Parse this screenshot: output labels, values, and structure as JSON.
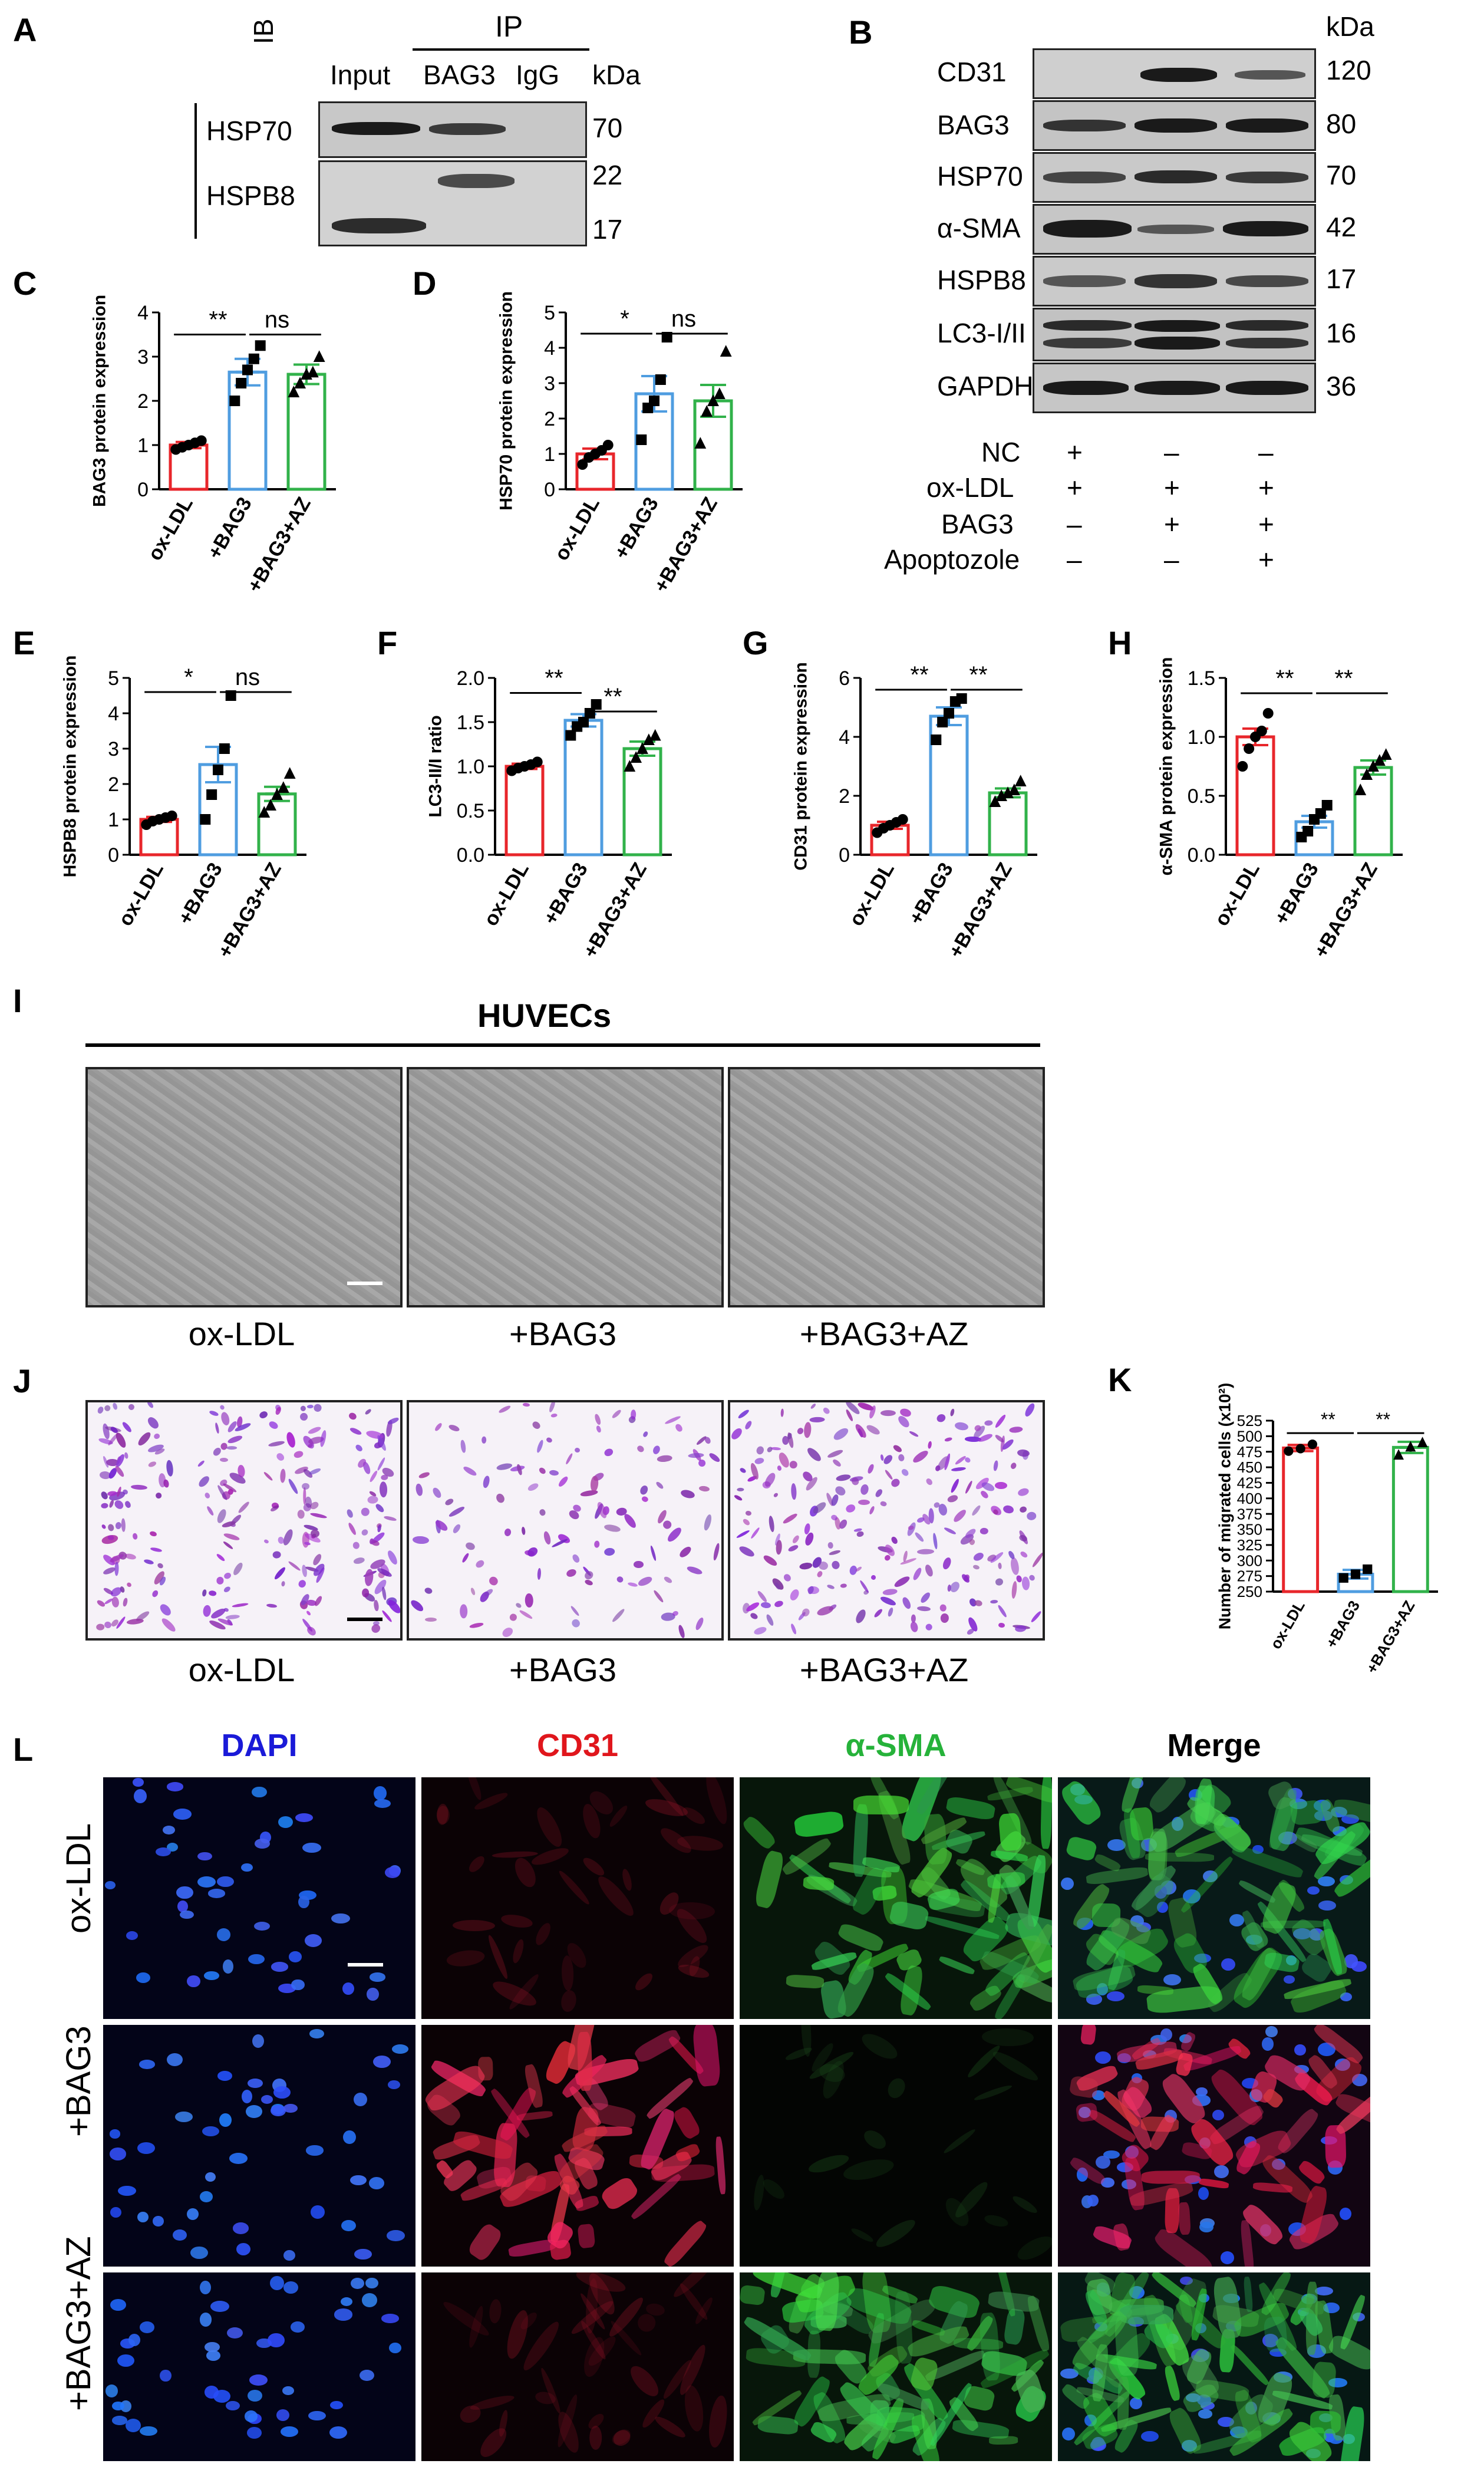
{
  "panels": {
    "A": {
      "letter": "A",
      "ib_label": "IB",
      "ip_label": "IP",
      "columns": [
        "Input",
        "BAG3",
        "IgG"
      ],
      "kda_header": "kDa",
      "rows": [
        {
          "name": "HSP70",
          "kda": [
            "70"
          ]
        },
        {
          "name": "HSPB8",
          "kda": [
            "22",
            "17"
          ]
        }
      ]
    },
    "B": {
      "letter": "B",
      "kda_header": "kDa",
      "rows": [
        {
          "name": "CD31",
          "kda": "120"
        },
        {
          "name": "BAG3",
          "kda": "80"
        },
        {
          "name": "HSP70",
          "kda": "70"
        },
        {
          "name": "α-SMA",
          "kda": "42"
        },
        {
          "name": "HSPB8",
          "kda": "17"
        },
        {
          "name": "LC3-I/II",
          "kda": "16"
        },
        {
          "name": "GAPDH",
          "kda": "36"
        }
      ],
      "conditions": [
        {
          "name": "NC",
          "signs": [
            "+",
            "–",
            "–"
          ]
        },
        {
          "name": "ox-LDL",
          "signs": [
            "+",
            "+",
            "+"
          ]
        },
        {
          "name": "BAG3",
          "signs": [
            "–",
            "+",
            "+"
          ]
        },
        {
          "name": "Apoptozole",
          "signs": [
            "–",
            "–",
            "+"
          ]
        }
      ]
    },
    "I": {
      "letter": "I",
      "group_label": "HUVECs",
      "labels": [
        "ox-LDL",
        "+BAG3",
        "+BAG3+AZ"
      ]
    },
    "J": {
      "letter": "J",
      "labels": [
        "ox-LDL",
        "+BAG3",
        "+BAG3+AZ"
      ]
    },
    "L": {
      "letter": "L",
      "channels": [
        "DAPI",
        "CD31",
        "α-SMA",
        "Merge"
      ],
      "channel_colors": [
        "#1a1ad8",
        "#e0161c",
        "#26b23a",
        "#000000"
      ],
      "rows": [
        "ox-LDL",
        "+BAG3",
        "+BAG3+AZ"
      ]
    }
  },
  "chart_data": [
    {
      "id": "C",
      "letter": "C",
      "type": "bar",
      "categories": [
        "ox-LDL",
        "+BAG3",
        "+BAG3+AZ"
      ],
      "ylabel": "BAG3 protein expression",
      "ylim": [
        0,
        4
      ],
      "yticks": [
        "0",
        "1",
        "2",
        "3",
        "4"
      ],
      "values": [
        1.0,
        2.65,
        2.6
      ],
      "errors": [
        0.07,
        0.3,
        0.22
      ],
      "points": [
        [
          0.9,
          0.95,
          1.0,
          1.05,
          1.1
        ],
        [
          2.0,
          2.4,
          2.7,
          2.95,
          3.25
        ],
        [
          2.2,
          2.4,
          2.6,
          2.65,
          3.0
        ]
      ],
      "markers": [
        "circle",
        "square",
        "triangle"
      ],
      "colors": [
        "#e8262b",
        "#4f9de0",
        "#31b24a"
      ],
      "comparisons": [
        {
          "from": 0,
          "to": 1,
          "label": "**",
          "y": 3.5
        },
        {
          "from": 1,
          "to": 2,
          "label": "ns",
          "y": 3.5
        }
      ]
    },
    {
      "id": "D",
      "letter": "D",
      "type": "bar",
      "categories": [
        "ox-LDL",
        "+BAG3",
        "+BAG3+AZ"
      ],
      "ylabel": "HSP70 protein expression",
      "ylim": [
        0,
        5
      ],
      "yticks": [
        "0",
        "1",
        "2",
        "3",
        "4",
        "5"
      ],
      "values": [
        1.0,
        2.7,
        2.5
      ],
      "errors": [
        0.15,
        0.5,
        0.45
      ],
      "points": [
        [
          0.7,
          0.9,
          1.0,
          1.1,
          1.25
        ],
        [
          1.4,
          2.3,
          2.5,
          3.1,
          4.3
        ],
        [
          1.3,
          2.2,
          2.5,
          2.7,
          3.9
        ]
      ],
      "markers": [
        "circle",
        "square",
        "triangle"
      ],
      "colors": [
        "#e8262b",
        "#4f9de0",
        "#31b24a"
      ],
      "comparisons": [
        {
          "from": 0,
          "to": 1,
          "label": "*",
          "y": 4.4
        },
        {
          "from": 1,
          "to": 2,
          "label": "ns",
          "y": 4.4
        }
      ]
    },
    {
      "id": "E",
      "letter": "E",
      "type": "bar",
      "categories": [
        "ox-LDL",
        "+BAG3",
        "+BAG3+AZ"
      ],
      "ylabel": "HSPB8 protein expression",
      "ylim": [
        0,
        5
      ],
      "yticks": [
        "0",
        "1",
        "2",
        "3",
        "4",
        "5"
      ],
      "values": [
        1.0,
        2.55,
        1.72
      ],
      "errors": [
        0.07,
        0.5,
        0.2
      ],
      "points": [
        [
          0.85,
          0.95,
          1.0,
          1.05,
          1.1
        ],
        [
          1.0,
          1.7,
          2.4,
          3.0,
          4.5
        ],
        [
          1.2,
          1.4,
          1.7,
          1.9,
          2.3
        ]
      ],
      "markers": [
        "circle",
        "square",
        "triangle"
      ],
      "colors": [
        "#e8262b",
        "#4f9de0",
        "#31b24a"
      ],
      "comparisons": [
        {
          "from": 0,
          "to": 1,
          "label": "*",
          "y": 4.6
        },
        {
          "from": 1,
          "to": 2,
          "label": "ns",
          "y": 4.6
        }
      ]
    },
    {
      "id": "F",
      "letter": "F",
      "type": "bar",
      "categories": [
        "ox-LDL",
        "+BAG3",
        "+BAG3+AZ"
      ],
      "ylabel": "LC3-II/I ratio",
      "ylim": [
        0,
        2
      ],
      "yticks": [
        "0.0",
        "0.5",
        "1.0",
        "1.5",
        "2.0"
      ],
      "values": [
        1.0,
        1.52,
        1.2
      ],
      "errors": [
        0.03,
        0.07,
        0.08
      ],
      "points": [
        [
          0.95,
          0.98,
          1.0,
          1.02,
          1.05
        ],
        [
          1.35,
          1.45,
          1.5,
          1.6,
          1.7
        ],
        [
          1.0,
          1.1,
          1.2,
          1.3,
          1.35
        ]
      ],
      "markers": [
        "circle",
        "square",
        "triangle"
      ],
      "colors": [
        "#e8262b",
        "#4f9de0",
        "#31b24a"
      ],
      "comparisons": [
        {
          "from": 0,
          "to": 1,
          "label": "**",
          "y": 1.83
        },
        {
          "from": 1,
          "to": 2,
          "label": "**",
          "y": 1.62
        }
      ]
    },
    {
      "id": "G",
      "letter": "G",
      "type": "bar",
      "categories": [
        "ox-LDL",
        "+BAG3",
        "+BAG3+AZ"
      ],
      "ylabel": "CD31 protein expression",
      "ylim": [
        0,
        6
      ],
      "yticks": [
        "0",
        "2",
        "4",
        "6"
      ],
      "values": [
        1.0,
        4.7,
        2.1
      ],
      "errors": [
        0.12,
        0.3,
        0.15
      ],
      "points": [
        [
          0.75,
          0.9,
          1.0,
          1.1,
          1.2
        ],
        [
          3.9,
          4.5,
          4.8,
          5.2,
          5.3
        ],
        [
          1.8,
          2.0,
          2.1,
          2.2,
          2.5
        ]
      ],
      "markers": [
        "circle",
        "square",
        "triangle"
      ],
      "colors": [
        "#e8262b",
        "#4f9de0",
        "#31b24a"
      ],
      "comparisons": [
        {
          "from": 0,
          "to": 1,
          "label": "**",
          "y": 5.6
        },
        {
          "from": 1,
          "to": 2,
          "label": "**",
          "y": 5.6
        }
      ]
    },
    {
      "id": "H",
      "letter": "H",
      "type": "bar",
      "categories": [
        "ox-LDL",
        "+BAG3",
        "+BAG3+AZ"
      ],
      "ylabel": "α-SMA protein expression",
      "ylim": [
        0,
        1.5
      ],
      "yticks": [
        "0.0",
        "0.5",
        "1.0",
        "1.5"
      ],
      "values": [
        1.0,
        0.28,
        0.74
      ],
      "errors": [
        0.07,
        0.05,
        0.06
      ],
      "points": [
        [
          0.75,
          0.9,
          1.0,
          1.05,
          1.2
        ],
        [
          0.15,
          0.2,
          0.3,
          0.35,
          0.42
        ],
        [
          0.55,
          0.68,
          0.75,
          0.8,
          0.85
        ]
      ],
      "markers": [
        "circle",
        "square",
        "triangle"
      ],
      "colors": [
        "#e8262b",
        "#4f9de0",
        "#31b24a"
      ],
      "comparisons": [
        {
          "from": 0,
          "to": 1,
          "label": "**",
          "y": 1.37
        },
        {
          "from": 1,
          "to": 2,
          "label": "**",
          "y": 1.37
        }
      ]
    },
    {
      "id": "K",
      "letter": "K",
      "type": "bar",
      "categories": [
        "ox-LDL",
        "+BAG3",
        "+BAG3+AZ"
      ],
      "ylabel": "Number of migrated cells (x10²)",
      "ylim": [
        250,
        525
      ],
      "yticks": [
        "250",
        "275",
        "300",
        "325",
        "350",
        "375",
        "400",
        "425",
        "450",
        "475",
        "500",
        "525"
      ],
      "values": [
        481,
        278,
        482
      ],
      "errors": [
        5,
        7,
        9
      ],
      "points": [
        [
          476,
          480,
          487
        ],
        [
          272,
          278,
          286
        ],
        [
          470,
          483,
          490
        ]
      ],
      "markers": [
        "circle",
        "square",
        "triangle"
      ],
      "colors": [
        "#e8262b",
        "#4f9de0",
        "#31b24a"
      ],
      "comparisons": [
        {
          "from": 0,
          "to": 1,
          "label": "**",
          "y": 505
        },
        {
          "from": 1,
          "to": 2,
          "label": "**",
          "y": 505
        }
      ]
    }
  ]
}
